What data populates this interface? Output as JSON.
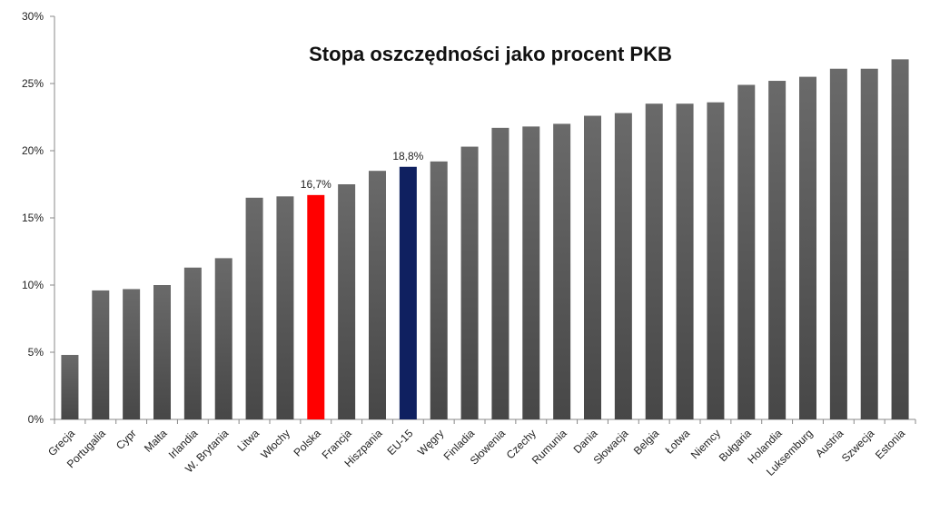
{
  "chart_data": {
    "type": "bar",
    "title": "Stopa oszczędności jako procent PKB",
    "xlabel": "",
    "ylabel": "",
    "ylim": [
      0,
      30
    ],
    "yticks": [
      "0%",
      "5%",
      "10%",
      "15%",
      "20%",
      "25%",
      "30%"
    ],
    "grid": false,
    "legend": "none",
    "categories": [
      "Grecja",
      "Portugalia",
      "Cypr",
      "Malta",
      "Irlandia",
      "W. Brytania",
      "Litwa",
      "Włochy",
      "Polska",
      "Francja",
      "Hiszpania",
      "EU-15",
      "Węgry",
      "Finladia",
      "Słowenia",
      "Czechy",
      "Rumunia",
      "Dania",
      "Słowacja",
      "Belgia",
      "Łotwa",
      "Niemcy",
      "Bułgaria",
      "Holandia",
      "Luksemburg",
      "Austria",
      "Szwecja",
      "Estonia"
    ],
    "values": [
      4.8,
      9.6,
      9.7,
      10.0,
      11.3,
      12.0,
      16.5,
      16.6,
      16.7,
      17.5,
      18.5,
      18.8,
      19.2,
      20.3,
      21.7,
      21.8,
      22.0,
      22.6,
      22.8,
      23.5,
      23.5,
      23.6,
      24.9,
      25.2,
      25.5,
      26.1,
      26.1,
      26.8
    ],
    "data_labels": {
      "Polska": "16,7%",
      "EU-15": "18,8%"
    },
    "colors": {
      "default": "#5a5a5a",
      "Polska": "#ff0000",
      "EU-15": "#0f2060",
      "axis": "#888888"
    }
  }
}
